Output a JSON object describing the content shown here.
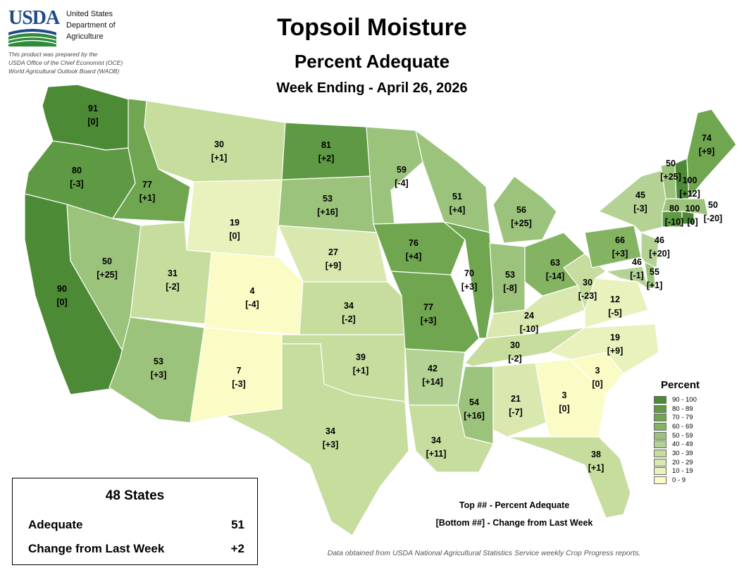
{
  "header": {
    "logo_text": "USDA",
    "agency": [
      "United States",
      "Department of",
      "Agriculture"
    ],
    "prepared_by": [
      "This product was prepared by the",
      "USDA Office of the Chief Economist (OCE)",
      "World Agricultural Outlook Board (WAOB)"
    ],
    "title": "Topsoil Moisture",
    "subtitle": "Percent Adequate",
    "week": "Week Ending - April 26, 2026"
  },
  "legend": {
    "title": "Percent",
    "classes": [
      {
        "label": "90 - 100",
        "color": "#4c8a35"
      },
      {
        "label": "80 - 89",
        "color": "#5e9a43"
      },
      {
        "label": "70 - 79",
        "color": "#70a650"
      },
      {
        "label": "60 - 69",
        "color": "#84b462"
      },
      {
        "label": "50 - 59",
        "color": "#9cc37b"
      },
      {
        "label": "40 - 49",
        "color": "#b3d294"
      },
      {
        "label": "30 - 39",
        "color": "#c6dd9e"
      },
      {
        "label": "20 - 29",
        "color": "#d9e8af"
      },
      {
        "label": "10 - 19",
        "color": "#e9f1bc"
      },
      {
        "label": "0 - 9",
        "color": "#fbfbc6"
      }
    ]
  },
  "summary": {
    "title": "48 States",
    "adequate_label": "Adequate",
    "adequate_value": "51",
    "change_label": "Change from Last Week",
    "change_value": "+2"
  },
  "key_text": [
    "Top ## - Percent Adequate",
    "[Bottom ##] - Change from Last Week"
  ],
  "source": "Data obtained from USDA National Agricultural Statistics Service weekly Crop Progress reports.",
  "states": {
    "WA": {
      "pct": "91",
      "chg": "[0]"
    },
    "OR": {
      "pct": "80",
      "chg": "[-3]"
    },
    "CA": {
      "pct": "90",
      "chg": "[0]"
    },
    "ID": {
      "pct": "77",
      "chg": "[+1]"
    },
    "NV": {
      "pct": "50",
      "chg": "[+25]"
    },
    "MT": {
      "pct": "30",
      "chg": "[+1]"
    },
    "WY": {
      "pct": "19",
      "chg": "[0]"
    },
    "UT": {
      "pct": "31",
      "chg": "[-2]"
    },
    "AZ": {
      "pct": "53",
      "chg": "[+3]"
    },
    "CO": {
      "pct": "4",
      "chg": "[-4]"
    },
    "NM": {
      "pct": "7",
      "chg": "[-3]"
    },
    "ND": {
      "pct": "81",
      "chg": "[+2]"
    },
    "SD": {
      "pct": "53",
      "chg": "[+16]"
    },
    "NE": {
      "pct": "27",
      "chg": "[+9]"
    },
    "KS": {
      "pct": "34",
      "chg": "[-2]"
    },
    "OK": {
      "pct": "39",
      "chg": "[+1]"
    },
    "TX": {
      "pct": "34",
      "chg": "[+3]"
    },
    "MN": {
      "pct": "59",
      "chg": "[-4]"
    },
    "IA": {
      "pct": "76",
      "chg": "[+4]"
    },
    "MO": {
      "pct": "77",
      "chg": "[+3]"
    },
    "AR": {
      "pct": "42",
      "chg": "[+14]"
    },
    "LA": {
      "pct": "34",
      "chg": "[+11]"
    },
    "WI": {
      "pct": "51",
      "chg": "[+4]"
    },
    "IL": {
      "pct": "70",
      "chg": "[+3]"
    },
    "MI": {
      "pct": "56",
      "chg": "[+25]"
    },
    "IN": {
      "pct": "53",
      "chg": "[-8]"
    },
    "OH": {
      "pct": "63",
      "chg": "[-14]"
    },
    "KY": {
      "pct": "24",
      "chg": "[-10]"
    },
    "TN": {
      "pct": "30",
      "chg": "[-2]"
    },
    "MS": {
      "pct": "54",
      "chg": "[+16]"
    },
    "AL": {
      "pct": "21",
      "chg": "[-7]"
    },
    "GA": {
      "pct": "3",
      "chg": "[0]"
    },
    "FL": {
      "pct": "38",
      "chg": "[+1]"
    },
    "SC": {
      "pct": "3",
      "chg": "[0]"
    },
    "NC": {
      "pct": "19",
      "chg": "[+9]"
    },
    "VA": {
      "pct": "12",
      "chg": "[-5]"
    },
    "WV": {
      "pct": "30",
      "chg": "[-23]"
    },
    "PA": {
      "pct": "66",
      "chg": "[+3]"
    },
    "NY": {
      "pct": "45",
      "chg": "[-3]"
    },
    "MD": {
      "pct": "46",
      "chg": "[-1]"
    },
    "DE": {
      "pct": "55",
      "chg": "[+1]"
    },
    "NJ": {
      "pct": "46",
      "chg": "[+20]"
    },
    "CT": {
      "pct": "80",
      "chg": "[-10]"
    },
    "RI": {
      "pct": "100",
      "chg": "[0]"
    },
    "MA": {
      "pct": "50",
      "chg": "[-20]"
    },
    "VT": {
      "pct": "50",
      "chg": "[+25]"
    },
    "NH": {
      "pct": "100",
      "chg": "[+12]"
    },
    "ME": {
      "pct": "74",
      "chg": "[+9]"
    }
  }
}
